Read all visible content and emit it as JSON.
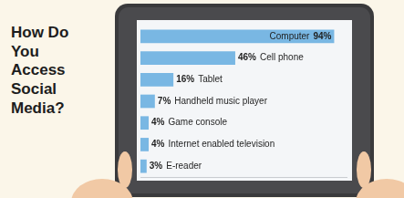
{
  "chart_data": {
    "type": "bar",
    "orientation": "horizontal",
    "title": "How Do You Access Social Media?",
    "categories": [
      "Computer",
      "Cell phone",
      "Tablet",
      "Handheld music player",
      "Game console",
      "Internet enabled television",
      "E-reader"
    ],
    "values": [
      94,
      46,
      16,
      7,
      4,
      4,
      3
    ],
    "value_labels": [
      "94%",
      "46%",
      "16%",
      "7%",
      "4%",
      "4%",
      "3%"
    ],
    "color": "#79b7e3",
    "xlim": [
      0,
      100
    ],
    "data_labels": true,
    "tick_labels": false,
    "grid": false
  }
}
